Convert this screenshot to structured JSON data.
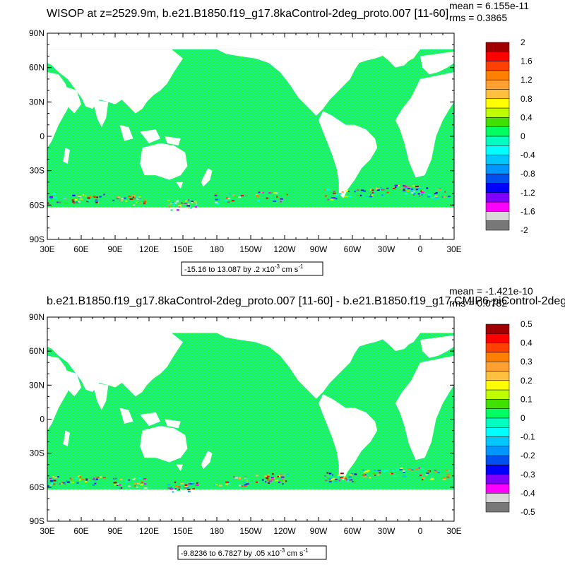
{
  "colors": {
    "ocean_base": "#1ce6aa",
    "ocean_alt": "#1eff1e",
    "land": "#ffffff",
    "frame": "#000000"
  },
  "chart_data": [
    {
      "type": "heatmap",
      "title": "WISOP at z=2529.9m, b.e21.B1850.f19_g17.8kaControl-2deg_proto.007 [11-60]",
      "stats": {
        "mean": "mean = 6.155e-11",
        "rms": "rms = 0.3865"
      },
      "x_ticks": [
        "30E",
        "60E",
        "90E",
        "120E",
        "150E",
        "180",
        "150W",
        "120W",
        "90W",
        "60W",
        "30W",
        "0",
        "30E"
      ],
      "y_ticks": [
        "90N",
        "60N",
        "30N",
        "0",
        "30S",
        "60S",
        "90S"
      ],
      "xlim": [
        30,
        390
      ],
      "ylim": [
        -90,
        90
      ],
      "contour_info": {
        "text": "-15.16 to 13.087 by .2 x10",
        "exp": "-3",
        "unit": " cm s",
        "unit_exp": "-1"
      },
      "colorbar": {
        "labels": [
          "2",
          "1.6",
          "1.2",
          "0.8",
          "0.4",
          "0",
          "-0.4",
          "-0.8",
          "-1.2",
          "-1.6",
          "-2"
        ],
        "colors": [
          "#a00000",
          "#ff0000",
          "#ff4000",
          "#ff8000",
          "#ffa030",
          "#ffc040",
          "#ffff00",
          "#c0ff00",
          "#40e000",
          "#00ff60",
          "#00ffc0",
          "#00ffff",
          "#00c8ff",
          "#0096ff",
          "#0050f0",
          "#0000ff",
          "#8000ff",
          "#ff00ff",
          "#d8d8d8",
          "#787878"
        ]
      }
    },
    {
      "type": "heatmap",
      "title": "b.e21.B1850.f19_g17.8kaControl-2deg_proto.007 [11-60] - b.e21.B1850.f19_g17.CMIP6-piControl-2deg",
      "stats": {
        "mean": "mean = -1.421e-10",
        "rms": "rms = 0.0782"
      },
      "x_ticks": [
        "30E",
        "60E",
        "90E",
        "120E",
        "150E",
        "180",
        "150W",
        "120W",
        "90W",
        "60W",
        "30W",
        "0",
        "30E"
      ],
      "y_ticks": [
        "90N",
        "60N",
        "30N",
        "0",
        "30S",
        "60S",
        "90S"
      ],
      "xlim": [
        30,
        390
      ],
      "ylim": [
        -90,
        90
      ],
      "contour_info": {
        "text": "-9.8236 to 6.7827 by .05 x10",
        "exp": "-3",
        "unit": " cm s",
        "unit_exp": "-1"
      },
      "colorbar": {
        "labels": [
          "0.5",
          "0.4",
          "0.3",
          "0.2",
          "0.1",
          "0",
          "-0.1",
          "-0.2",
          "-0.3",
          "-0.4",
          "-0.5"
        ],
        "colors": [
          "#a00000",
          "#ff0000",
          "#ff4000",
          "#ff8000",
          "#ffa030",
          "#ffc040",
          "#ffff00",
          "#c0ff00",
          "#40e000",
          "#00ff60",
          "#00ffc0",
          "#00ffff",
          "#00c8ff",
          "#0096ff",
          "#0050f0",
          "#0000ff",
          "#8000ff",
          "#ff00ff",
          "#d8d8d8",
          "#787878"
        ]
      }
    }
  ]
}
